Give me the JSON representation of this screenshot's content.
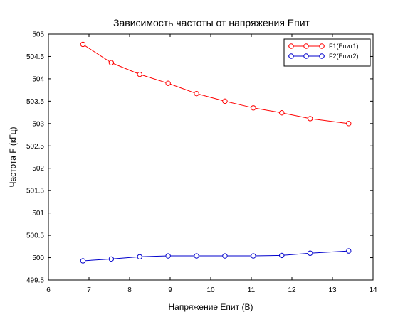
{
  "chart_data": {
    "type": "line",
    "title": "Зависимость частоты от напряжения Епит",
    "xlabel": "Напряжение Епит (В)",
    "ylabel": "Частота F (кГц)",
    "xlim": [
      6,
      14
    ],
    "ylim": [
      499.5,
      505
    ],
    "xticks": [
      "6",
      "7",
      "8",
      "9",
      "10",
      "11",
      "12",
      "13",
      "14"
    ],
    "yticks": [
      "499.5",
      "500",
      "500.5",
      "501",
      "501.5",
      "502",
      "502.5",
      "503",
      "503.5",
      "504",
      "504.5",
      "505"
    ],
    "grid": false,
    "legend_position": "top-right",
    "x": [
      6.85,
      7.55,
      8.25,
      8.95,
      9.65,
      10.35,
      11.05,
      11.75,
      12.45,
      13.4
    ],
    "series": [
      {
        "name": "F1(Епит1)",
        "color": "#ff0000",
        "values": [
          504.77,
          504.36,
          504.1,
          503.9,
          503.67,
          503.5,
          503.35,
          503.24,
          503.11,
          503.0
        ]
      },
      {
        "name": "F2(Епит2)",
        "color": "#0000cc",
        "values": [
          499.93,
          499.97,
          500.02,
          500.04,
          500.04,
          500.04,
          500.04,
          500.05,
          500.1,
          500.15
        ]
      }
    ]
  }
}
